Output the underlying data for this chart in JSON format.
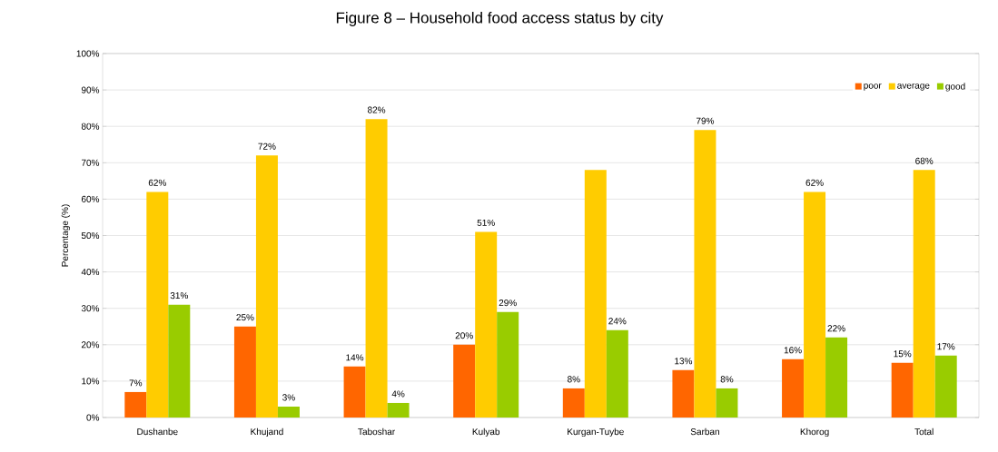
{
  "chart_data": {
    "type": "bar",
    "title": "Figure 8 – Household food access status by city",
    "ylabel": "Percentage (%)",
    "categories": [
      "Dushanbe",
      "Khujand",
      "Taboshar",
      "Kulyab",
      "Kurgan-Tuybe",
      "Sarban",
      "Khorog",
      "Total"
    ],
    "series": [
      {
        "name": "poor",
        "color": "#ff6600",
        "values": [
          7,
          25,
          14,
          20,
          8,
          13,
          16,
          15
        ],
        "value_labels": [
          "7%",
          "25%",
          "14%",
          "20%",
          "8%",
          "13%",
          "16%",
          "15%"
        ]
      },
      {
        "name": "average",
        "color": "#ffcc00",
        "values": [
          62,
          72,
          82,
          51,
          68,
          79,
          62,
          68
        ],
        "value_labels": [
          "62%",
          "72%",
          "82%",
          "51%",
          null,
          "79%",
          "62%",
          "68%"
        ]
      },
      {
        "name": "good",
        "color": "#99cc00",
        "values": [
          31,
          3,
          4,
          29,
          24,
          8,
          22,
          17
        ],
        "value_labels": [
          "31%",
          "3%",
          "4%",
          "29%",
          "24%",
          "8%",
          "22%",
          "17%"
        ]
      }
    ],
    "ylim": [
      0,
      100
    ],
    "yticks": [
      {
        "value": 0,
        "label": "0%"
      },
      {
        "value": 10,
        "label": "10%"
      },
      {
        "value": 20,
        "label": "20%"
      },
      {
        "value": 30,
        "label": "30%"
      },
      {
        "value": 40,
        "label": "40%"
      },
      {
        "value": 50,
        "label": "50%"
      },
      {
        "value": 60,
        "label": "60%"
      },
      {
        "value": 70,
        "label": "70%"
      },
      {
        "value": 80,
        "label": "80%"
      },
      {
        "value": 90,
        "label": "90%"
      },
      {
        "value": 100,
        "label": "100%"
      }
    ],
    "grid": "y",
    "legend": "top right"
  }
}
